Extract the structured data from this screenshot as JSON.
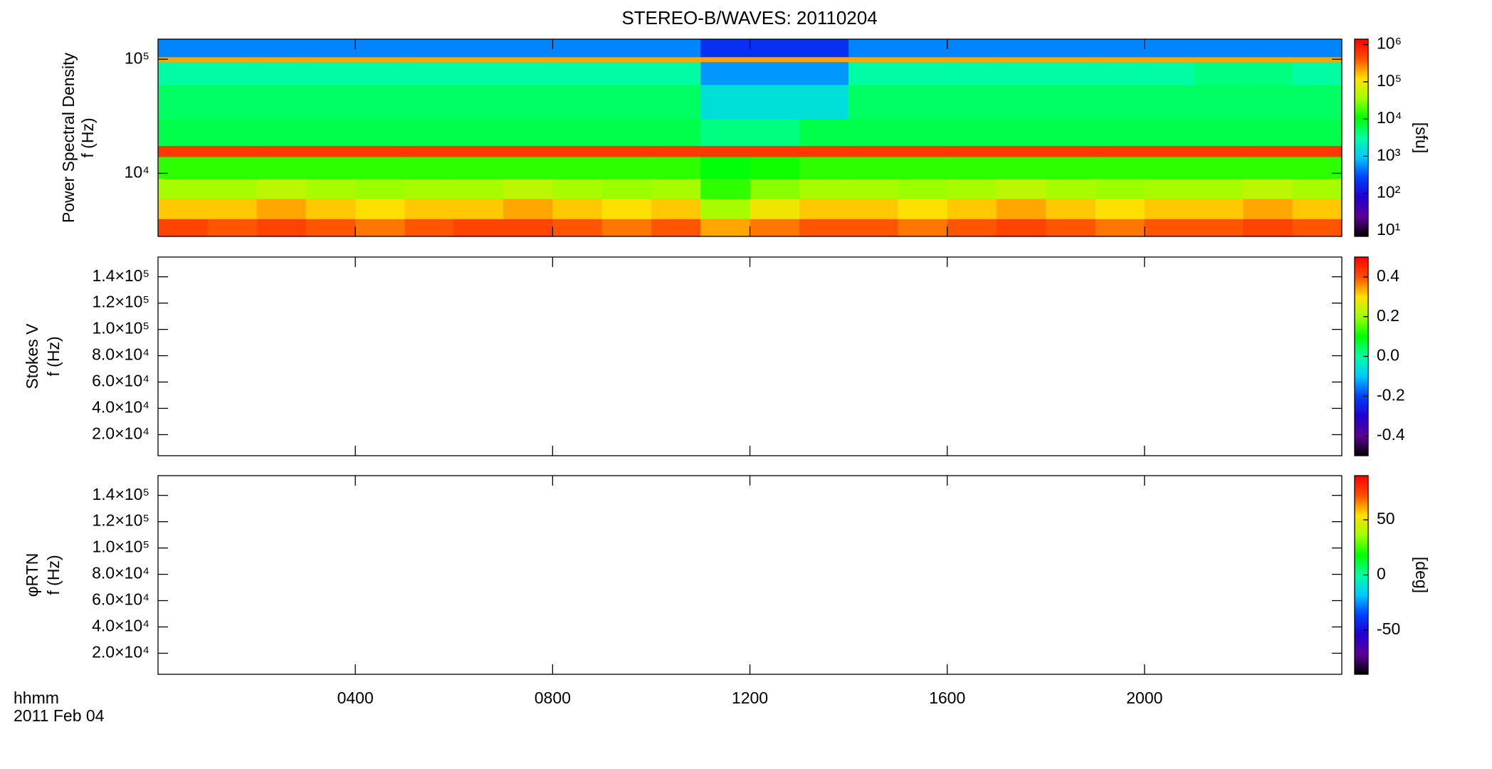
{
  "chart_data": [
    {
      "type": "spectrogram",
      "title": "STEREO-B/WAVES: 20110204",
      "ylabel": [
        "Power Spectral Density",
        "f (Hz)"
      ],
      "ylog": true,
      "ylim": [
        2800,
        150000
      ],
      "yticks": [
        {
          "value": 10000,
          "label": "10⁴"
        },
        {
          "value": 100000,
          "label": "10⁵"
        }
      ],
      "clog": true,
      "clim": [
        7,
        1400000
      ],
      "cticks": [
        {
          "value": 10,
          "label": "10¹"
        },
        {
          "value": 100,
          "label": "10²"
        },
        {
          "value": 1000,
          "label": "10³"
        },
        {
          "value": 10000,
          "label": "10⁴"
        },
        {
          "value": 100000,
          "label": "10⁵"
        },
        {
          "value": 1000000,
          "label": "10⁶"
        }
      ],
      "clabel": "[sfu]",
      "colormap": [
        "#000000",
        "#5c0096",
        "#2000d0",
        "#0040ff",
        "#00c8ff",
        "#00ffa0",
        "#00ff00",
        "#a0ff00",
        "#ffe000",
        "#ff5000",
        "#ff0000"
      ],
      "time_bins": [
        0,
        1,
        2,
        3,
        4,
        5,
        6,
        7,
        8,
        9,
        10,
        11,
        12,
        13,
        14,
        15,
        16,
        17,
        18,
        19,
        20,
        21,
        22,
        23,
        24
      ],
      "freq_bins": [
        2800,
        4000,
        6000,
        9000,
        14000,
        17500,
        30000,
        60000,
        95000,
        105000,
        150000
      ],
      "z": [
        [
          500000,
          400000,
          500000,
          400000,
          300000,
          400000,
          500000,
          500000,
          400000,
          300000,
          400000,
          200000,
          300000,
          400000,
          400000,
          300000,
          400000,
          500000,
          400000,
          300000,
          400000,
          400000,
          500000,
          400000
        ],
        [
          150000,
          150000,
          200000,
          150000,
          120000,
          150000,
          150000,
          200000,
          150000,
          120000,
          150000,
          40000,
          100000,
          150000,
          150000,
          120000,
          150000,
          200000,
          150000,
          120000,
          150000,
          150000,
          200000,
          150000
        ],
        [
          40000,
          40000,
          50000,
          40000,
          35000,
          40000,
          40000,
          50000,
          40000,
          35000,
          40000,
          15000,
          30000,
          40000,
          40000,
          35000,
          40000,
          50000,
          40000,
          35000,
          40000,
          40000,
          50000,
          40000
        ],
        [
          15000,
          15000,
          15000,
          15000,
          15000,
          15000,
          15000,
          15000,
          15000,
          15000,
          15000,
          10000,
          12000,
          15000,
          15000,
          15000,
          15000,
          15000,
          15000,
          15000,
          15000,
          15000,
          15000,
          15000
        ],
        [
          600000,
          600000,
          600000,
          600000,
          600000,
          600000,
          600000,
          600000,
          600000,
          600000,
          600000,
          600000,
          600000,
          600000,
          600000,
          600000,
          600000,
          600000,
          600000,
          600000,
          600000,
          600000,
          600000,
          600000
        ],
        [
          6000,
          6000,
          6000,
          6000,
          6000,
          6000,
          6000,
          6000,
          6000,
          6000,
          6000,
          4000,
          4000,
          6000,
          6000,
          6000,
          6000,
          6000,
          6000,
          6000,
          6000,
          6000,
          6000,
          6000
        ],
        [
          5000,
          5000,
          5000,
          5000,
          5000,
          5000,
          5000,
          5000,
          5000,
          5000,
          5000,
          1500,
          1500,
          1500,
          5000,
          5000,
          5000,
          5000,
          5000,
          5000,
          5000,
          5000,
          5000,
          5000
        ],
        [
          3000,
          3000,
          3000,
          3000,
          3000,
          3000,
          3000,
          3000,
          3000,
          3000,
          3000,
          600,
          600,
          600,
          3000,
          3000,
          3000,
          3000,
          3000,
          3000,
          3000,
          4000,
          4000,
          3000
        ],
        [
          200000,
          200000,
          200000,
          200000,
          200000,
          200000,
          200000,
          200000,
          200000,
          200000,
          200000,
          200000,
          200000,
          200000,
          200000,
          200000,
          200000,
          200000,
          200000,
          200000,
          200000,
          200000,
          200000,
          200000
        ],
        [
          500,
          500,
          500,
          500,
          500,
          500,
          500,
          500,
          500,
          500,
          500,
          200,
          200,
          200,
          500,
          500,
          500,
          500,
          500,
          500,
          500,
          500,
          500,
          500
        ]
      ]
    },
    {
      "type": "spectrogram",
      "ylabel": [
        "Stokes V",
        "f (Hz)"
      ],
      "ylog": false,
      "ylim": [
        4000,
        155000
      ],
      "yticks": [
        {
          "value": 20000,
          "label": "2.0×10⁴"
        },
        {
          "value": 40000,
          "label": "4.0×10⁴"
        },
        {
          "value": 60000,
          "label": "6.0×10⁴"
        },
        {
          "value": 80000,
          "label": "8.0×10⁴"
        },
        {
          "value": 100000,
          "label": "1.0×10⁵"
        },
        {
          "value": 120000,
          "label": "1.2×10⁵"
        },
        {
          "value": 140000,
          "label": "1.4×10⁵"
        }
      ],
      "clog": false,
      "clim": [
        -0.5,
        0.5
      ],
      "cticks": [
        -0.4,
        -0.2,
        {
          "value": 0,
          "label": "0.0"
        },
        0.2,
        0.4
      ],
      "colormap": [
        "#000000",
        "#5c0096",
        "#2000d0",
        "#0040ff",
        "#00c8ff",
        "#00ffa0",
        "#00ff00",
        "#a0ff00",
        "#ffe000",
        "#ff5000",
        "#ff0000"
      ]
    },
    {
      "type": "spectrogram",
      "ylabel": [
        "φRTN",
        "f (Hz)"
      ],
      "ylog": false,
      "ylim": [
        4000,
        155000
      ],
      "yticks": [
        {
          "value": 20000,
          "label": "2.0×10⁴"
        },
        {
          "value": 40000,
          "label": "4.0×10⁴"
        },
        {
          "value": 60000,
          "label": "6.0×10⁴"
        },
        {
          "value": 80000,
          "label": "8.0×10⁴"
        },
        {
          "value": 100000,
          "label": "1.0×10⁵"
        },
        {
          "value": 120000,
          "label": "1.2×10⁵"
        },
        {
          "value": 140000,
          "label": "1.4×10⁵"
        }
      ],
      "clog": false,
      "clim": [
        -90,
        90
      ],
      "cticks": [
        -50,
        0,
        50
      ],
      "clabel": "[deg]",
      "colormap": [
        "#000000",
        "#5c0096",
        "#2000d0",
        "#0040ff",
        "#00c8ff",
        "#00ffa0",
        "#00ff00",
        "#a0ff00",
        "#ffe000",
        "#ff5000",
        "#ff0000"
      ],
      "xlim": [
        0,
        24
      ],
      "xticks": [
        {
          "value": 4,
          "label": "0400"
        },
        {
          "value": 8,
          "label": "0800"
        },
        {
          "value": 12,
          "label": "1200"
        },
        {
          "value": 16,
          "label": "1600"
        },
        {
          "value": 20,
          "label": "2000"
        }
      ],
      "xlabel": [
        "hhmm",
        "2011 Feb 04"
      ]
    }
  ]
}
